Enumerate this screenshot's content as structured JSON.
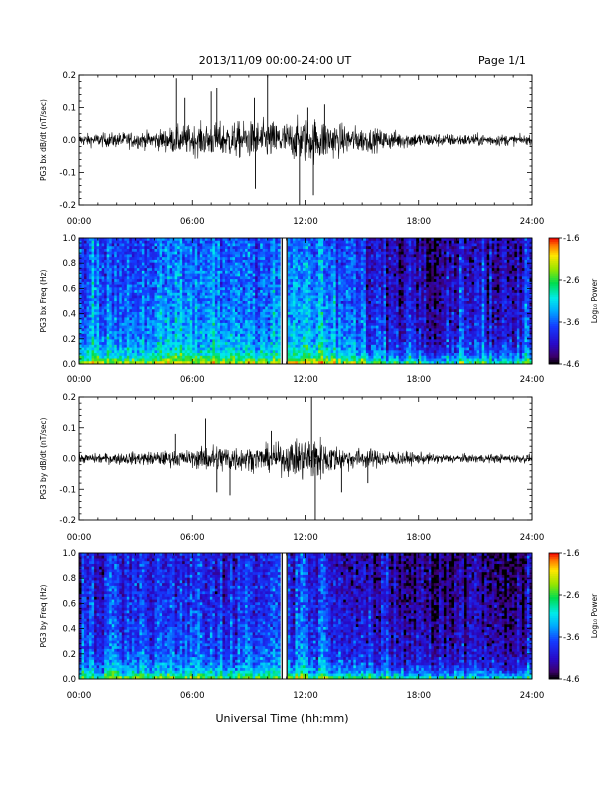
{
  "header": {
    "title": "2013/11/09  00:00-24:00 UT",
    "page": "Page 1/1"
  },
  "footer": {
    "xlabel": "Universal Time (hh:mm)"
  },
  "colors": {
    "trace": "#000000",
    "background": "#ffffff"
  },
  "chart_data": [
    {
      "type": "line",
      "ylabel": "PG3 bx dB/dt (nT/sec)",
      "xlim": [
        0,
        24
      ],
      "ylim": [
        -0.2,
        0.2
      ],
      "x_ticks": [
        "00:00",
        "06:00",
        "12:00",
        "18:00",
        "24:00"
      ],
      "y_ticks": [
        "0.2",
        "0.1",
        "0.0",
        "-0.1",
        "-0.2"
      ],
      "noise_envelope_hours": [
        0,
        2,
        4,
        5,
        6,
        8,
        9,
        10,
        11,
        12,
        13,
        14,
        16,
        18,
        20,
        22,
        24
      ],
      "noise_envelope_amp": [
        0.02,
        0.025,
        0.03,
        0.045,
        0.05,
        0.06,
        0.06,
        0.065,
        0.06,
        0.075,
        0.07,
        0.05,
        0.035,
        0.025,
        0.02,
        0.02,
        0.015
      ],
      "spikes": [
        {
          "x": 5.15,
          "y": 0.19
        },
        {
          "x": 5.6,
          "y": 0.13
        },
        {
          "x": 7.0,
          "y": 0.15
        },
        {
          "x": 7.3,
          "y": 0.16
        },
        {
          "x": 9.3,
          "y": 0.13
        },
        {
          "x": 9.35,
          "y": -0.15
        },
        {
          "x": 10.0,
          "y": 0.2
        },
        {
          "x": 11.7,
          "y": -0.2
        },
        {
          "x": 12.1,
          "y": 0.1
        },
        {
          "x": 12.4,
          "y": -0.17
        },
        {
          "x": 13.0,
          "y": 0.11
        }
      ]
    },
    {
      "type": "heatmap",
      "ylabel": "PG3 bx Freq (Hz)",
      "xlim": [
        0,
        24
      ],
      "ylim": [
        0,
        1.0
      ],
      "x_ticks": [
        "00:00",
        "06:00",
        "12:00",
        "18:00",
        "24:00"
      ],
      "y_ticks": [
        "1.0",
        "0.8",
        "0.6",
        "0.4",
        "0.2",
        "0.0"
      ],
      "gap_hours": [
        10.85,
        10.95
      ],
      "colorbar": {
        "label": "Log₁₀ Power",
        "min": -4.6,
        "max": -1.6,
        "ticks": [
          "-1.6",
          "-2.6",
          "-3.6",
          "-4.6"
        ]
      },
      "activity_hours": [
        0,
        3,
        6,
        9,
        12,
        13,
        15,
        16,
        17,
        18,
        19,
        20,
        21,
        22,
        23,
        24
      ],
      "activity_level": [
        -3.5,
        -3.5,
        -3.4,
        -3.4,
        -3.3,
        -3.4,
        -3.7,
        -3.9,
        -4.0,
        -3.9,
        -4.1,
        -3.9,
        -3.8,
        -4.0,
        -4.1,
        -3.8
      ]
    },
    {
      "type": "line",
      "ylabel": "PG3 by dB/dt (nT/sec)",
      "xlim": [
        0,
        24
      ],
      "ylim": [
        -0.2,
        0.2
      ],
      "x_ticks": [
        "00:00",
        "06:00",
        "12:00",
        "18:00",
        "24:00"
      ],
      "y_ticks": [
        "0.2",
        "0.1",
        "0.0",
        "-0.1",
        "-0.2"
      ],
      "noise_envelope_hours": [
        0,
        2,
        4,
        6,
        7,
        8,
        9,
        10,
        11,
        12,
        12.5,
        13,
        14,
        16,
        18,
        20,
        24
      ],
      "noise_envelope_amp": [
        0.015,
        0.02,
        0.025,
        0.03,
        0.05,
        0.05,
        0.04,
        0.045,
        0.055,
        0.08,
        0.09,
        0.06,
        0.04,
        0.03,
        0.02,
        0.015,
        0.015
      ],
      "spikes": [
        {
          "x": 5.1,
          "y": 0.08
        },
        {
          "x": 6.7,
          "y": 0.13
        },
        {
          "x": 7.3,
          "y": -0.11
        },
        {
          "x": 8.0,
          "y": -0.12
        },
        {
          "x": 10.2,
          "y": 0.09
        },
        {
          "x": 12.3,
          "y": 0.2
        },
        {
          "x": 12.5,
          "y": -0.2
        },
        {
          "x": 13.9,
          "y": -0.11
        },
        {
          "x": 15.3,
          "y": -0.08
        }
      ]
    },
    {
      "type": "heatmap",
      "ylabel": "PG3 by Freq (Hz)",
      "xlim": [
        0,
        24
      ],
      "ylim": [
        0,
        1.0
      ],
      "x_ticks": [
        "00:00",
        "06:00",
        "12:00",
        "18:00",
        "24:00"
      ],
      "y_ticks": [
        "1.0",
        "0.8",
        "0.6",
        "0.4",
        "0.2",
        "0.0"
      ],
      "gap_hours": [
        10.85,
        10.95
      ],
      "colorbar": {
        "label": "Log₁₀ Power",
        "min": -4.6,
        "max": -1.6,
        "ticks": [
          "-1.6",
          "-2.6",
          "-3.6",
          "-4.6"
        ]
      },
      "activity_hours": [
        0,
        3,
        6,
        9,
        12,
        13,
        15,
        16,
        17,
        18,
        19,
        20,
        21,
        22,
        23,
        24
      ],
      "activity_level": [
        -3.8,
        -3.8,
        -3.7,
        -3.7,
        -3.6,
        -3.7,
        -3.9,
        -4.1,
        -4.2,
        -4.1,
        -4.3,
        -4.2,
        -4.0,
        -4.2,
        -4.3,
        -4.0
      ]
    }
  ]
}
